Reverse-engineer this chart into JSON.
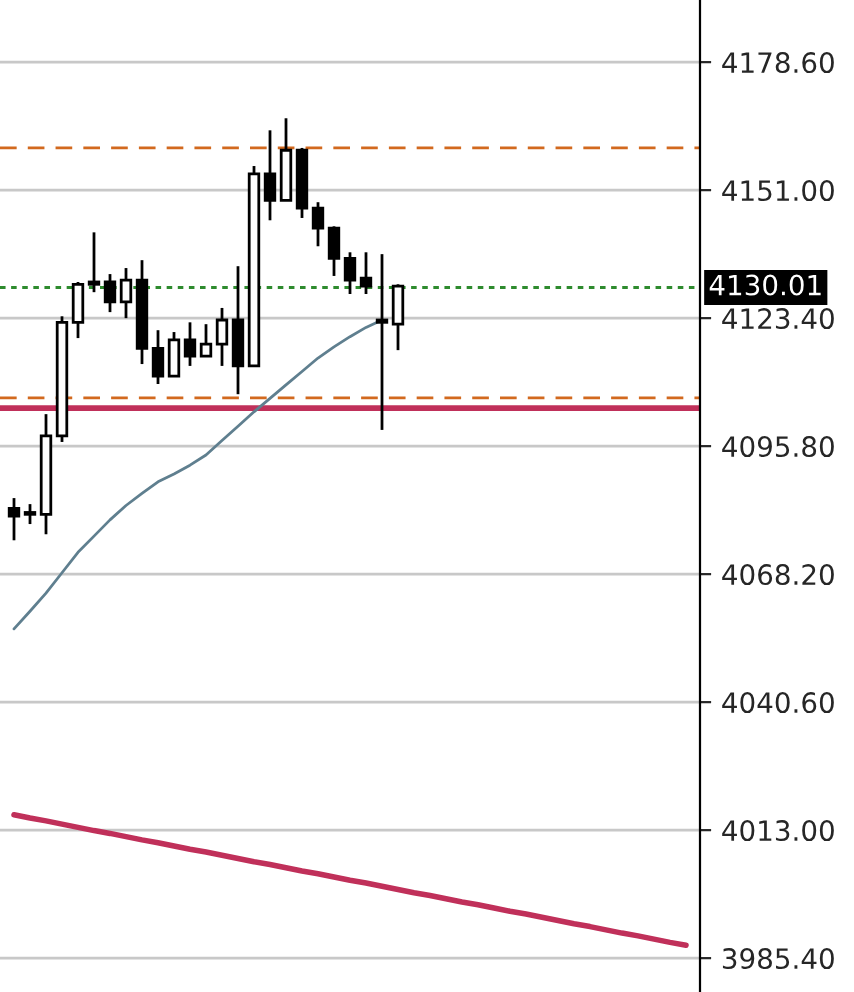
{
  "chart_data": {
    "type": "candlestick",
    "categories": [
      null,
      null,
      null,
      null,
      null,
      null,
      null,
      null,
      null,
      null,
      null,
      null,
      null,
      null,
      null,
      null,
      null,
      null,
      null,
      null,
      null,
      null,
      null,
      null,
      null,
      null,
      null,
      null,
      null,
      null,
      null,
      null,
      null,
      null,
      null,
      null,
      null,
      null,
      null,
      null,
      null,
      null,
      null
    ],
    "ohlc": [
      [
        4082.4,
        4084.6,
        4075.5,
        4080.7
      ],
      [
        4081.1,
        4083.3,
        4079.0,
        4081.1
      ],
      [
        4081.1,
        4102.7,
        4076.8,
        4098.0
      ],
      [
        4098.0,
        4123.8,
        4096.7,
        4122.5
      ],
      [
        4122.5,
        4131.2,
        4119.1,
        4130.7
      ],
      [
        4131.2,
        4141.9,
        4129.0,
        4130.7
      ],
      [
        4131.2,
        4132.9,
        4124.7,
        4126.9
      ],
      [
        4126.9,
        4134.2,
        4123.4,
        4131.6
      ],
      [
        4131.6,
        4135.9,
        4113.5,
        4116.9
      ],
      [
        4116.9,
        4120.8,
        4109.2,
        4110.9
      ],
      [
        4110.9,
        4120.4,
        4110.9,
        4118.7
      ],
      [
        4118.7,
        4122.5,
        4113.1,
        4115.2
      ],
      [
        4115.2,
        4122.1,
        4115.2,
        4117.8
      ],
      [
        4117.8,
        4125.6,
        4113.1,
        4123.0
      ],
      [
        4123.0,
        4134.6,
        4107.0,
        4113.1
      ],
      [
        4113.1,
        4156.2,
        4113.1,
        4154.5
      ],
      [
        4154.5,
        4163.9,
        4144.5,
        4148.8
      ],
      [
        4148.8,
        4166.5,
        4148.8,
        4159.6
      ],
      [
        4159.6,
        4160.1,
        4145.0,
        4147.1
      ],
      [
        4147.1,
        4148.4,
        4138.9,
        4142.8
      ],
      [
        4142.8,
        4143.2,
        4132.5,
        4136.3
      ],
      [
        4136.3,
        4137.6,
        4128.6,
        4131.6
      ],
      [
        4132.0,
        4137.6,
        4128.6,
        4130.3
      ],
      [
        4123.0,
        4137.2,
        4099.3,
        4122.5
      ],
      [
        4122.1,
        4130.7,
        4116.5,
        4130.3
      ],
      null,
      null,
      null,
      null,
      null,
      null,
      null,
      null,
      null,
      null,
      null,
      null,
      null,
      null,
      null,
      null,
      null,
      null
    ],
    "series": [
      {
        "type": "line",
        "color": "#5f7f8f",
        "values": [
          4056.4,
          4060.2,
          4064.1,
          4068.5,
          4072.9,
          4076.4,
          4079.9,
          4083.0,
          4085.6,
          4088.1,
          4089.8,
          4091.7,
          4093.9,
          4097.0,
          4100.1,
          4103.2,
          4106.1,
          4109.0,
          4111.9,
          4114.8,
          4117.2,
          4119.4,
          4121.4,
          4123.0,
          null,
          null,
          null,
          null,
          null,
          null,
          null,
          null,
          null,
          null,
          null,
          null,
          null,
          null,
          null,
          null,
          null,
          null,
          null
        ]
      },
      {
        "type": "line",
        "color": "#c0305a",
        "values": [
          4016.3,
          4015.6,
          4015.0,
          4014.3,
          4013.6,
          4012.9,
          4012.3,
          4011.6,
          4010.9,
          4010.3,
          4009.6,
          4008.9,
          4008.3,
          4007.6,
          4006.9,
          4006.2,
          4005.6,
          4004.9,
          4004.2,
          4003.6,
          4002.9,
          4002.2,
          4001.6,
          4000.9,
          4000.2,
          3999.5,
          3998.9,
          3998.2,
          3997.5,
          3996.9,
          3996.2,
          3995.5,
          3994.9,
          3994.2,
          3993.5,
          3992.8,
          3992.2,
          3991.5,
          3990.8,
          3990.2,
          3989.5,
          3988.8,
          3988.2
        ]
      }
    ],
    "ref_lines": [
      {
        "axis": "y",
        "value": 4160.1,
        "color": "#d2691e",
        "line_style": "dashed"
      },
      {
        "axis": "y",
        "value": 4106.2,
        "color": "#d2691e",
        "line_style": "dashed"
      },
      {
        "axis": "y",
        "value": 4104.0,
        "color": "#c0305a",
        "line_style": "solid"
      },
      {
        "axis": "y",
        "value": 4130.01,
        "color": "#2e8b2e",
        "line_style": "dotted",
        "label": "4130.01"
      }
    ],
    "ylim": [
      3978.1,
      4192.0
    ],
    "yticks": [
      {
        "value": 3985.4,
        "label": "3985.40"
      },
      {
        "value": 4013.0,
        "label": "4013.00"
      },
      {
        "value": 4040.6,
        "label": "4040.60"
      },
      {
        "value": 4068.2,
        "label": "4068.20"
      },
      {
        "value": 4095.8,
        "label": "4095.80"
      },
      {
        "value": 4123.4,
        "label": "4123.40"
      },
      {
        "value": 4151.0,
        "label": "4151.00"
      },
      {
        "value": 4178.6,
        "label": "4178.60"
      }
    ],
    "grid": "y",
    "tick_labels": "y"
  }
}
